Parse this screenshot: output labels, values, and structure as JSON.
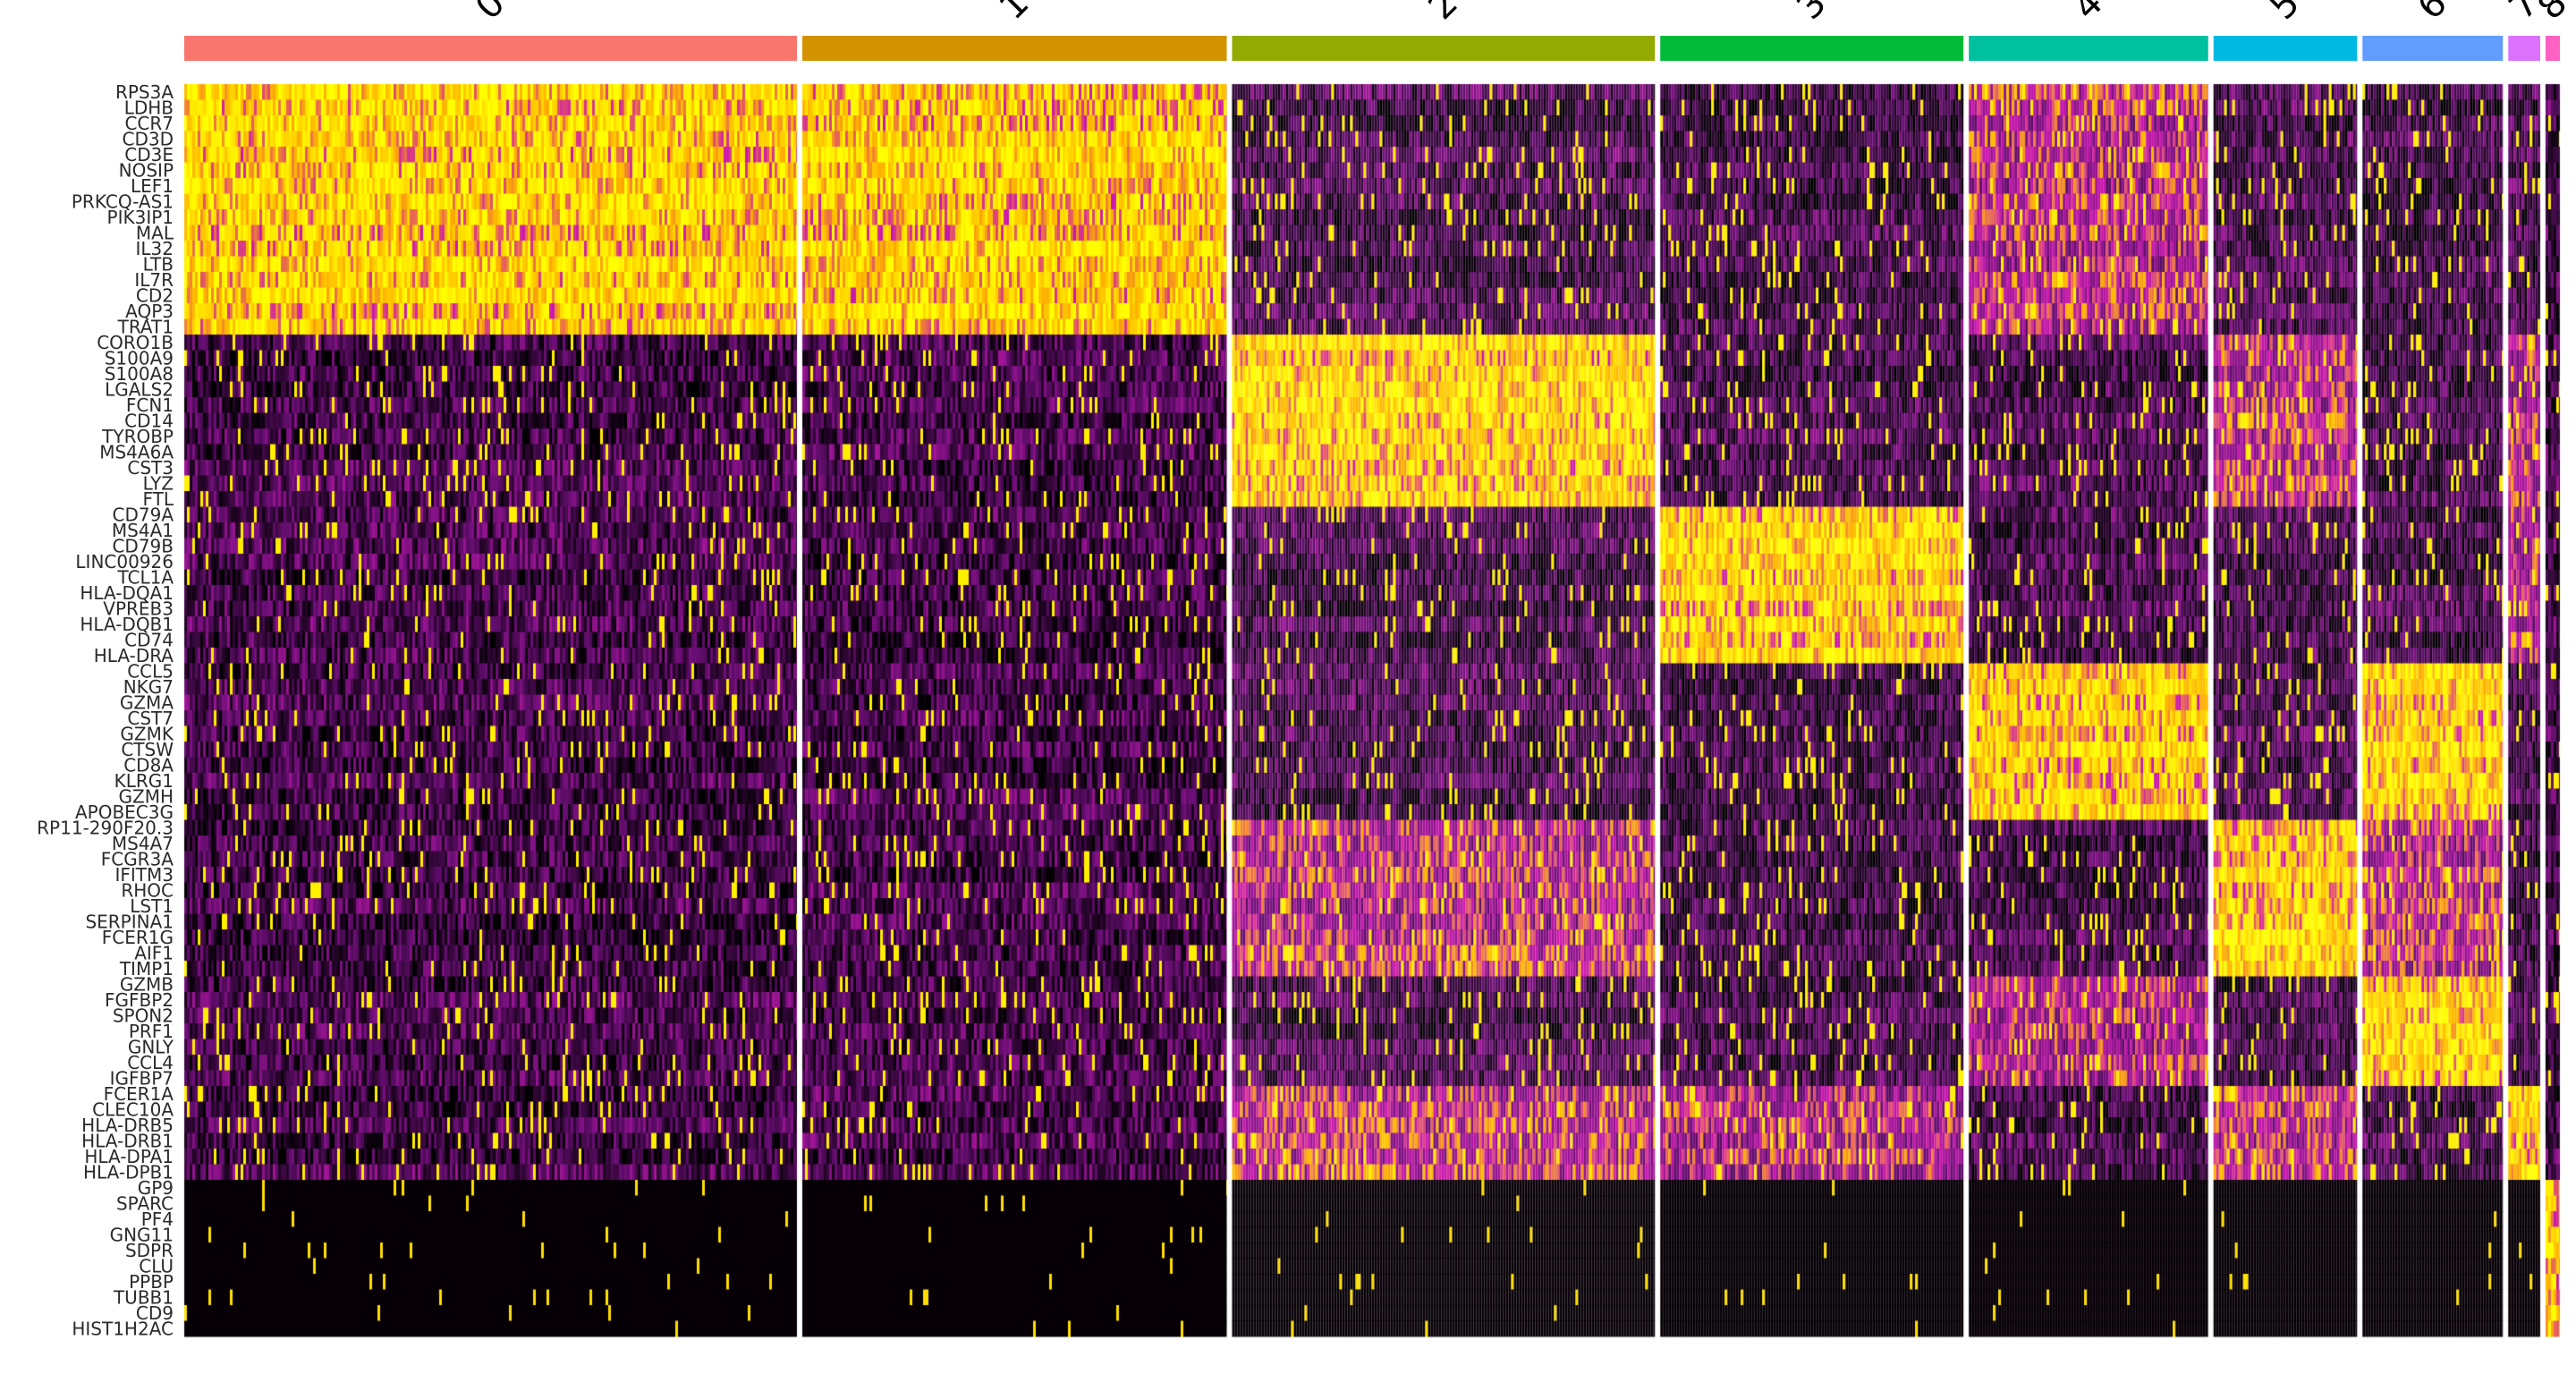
{
  "chart_data": {
    "type": "heatmap",
    "title": "",
    "xlabel": "",
    "ylabel": "",
    "color_scale": [
      "#000000",
      "#6a0f75",
      "#ff00ff",
      "#ffff00"
    ],
    "groups": [
      {
        "label": "0",
        "color": "#F8766D",
        "cells": 384
      },
      {
        "label": "1",
        "color": "#D39200",
        "cells": 266
      },
      {
        "label": "2",
        "color": "#93AA00",
        "cells": 265
      },
      {
        "label": "3",
        "color": "#00BA38",
        "cells": 190
      },
      {
        "label": "4",
        "color": "#00C19F",
        "cells": 150
      },
      {
        "label": "5",
        "color": "#00B9E3",
        "cells": 90
      },
      {
        "label": "6",
        "color": "#619CFF",
        "cells": 88
      },
      {
        "label": "7",
        "color": "#DB72FB",
        "cells": 20
      },
      {
        "label": "8",
        "color": "#FF61C3",
        "cells": 9
      }
    ],
    "genes": [
      "RPS3A",
      "LDHB",
      "CCR7",
      "CD3D",
      "CD3E",
      "NOSIP",
      "LEF1",
      "PRKCQ-AS1",
      "PIK3IP1",
      "MAL",
      "IL32",
      "LTB",
      "IL7R",
      "CD2",
      "AQP3",
      "TRAT1",
      "CORO1B",
      "S100A9",
      "S100A8",
      "LGALS2",
      "FCN1",
      "CD14",
      "TYROBP",
      "MS4A6A",
      "CST3",
      "LYZ",
      "FTL",
      "CD79A",
      "MS4A1",
      "CD79B",
      "LINC00926",
      "TCL1A",
      "HLA-DQA1",
      "VPREB3",
      "HLA-DQB1",
      "CD74",
      "HLA-DRA",
      "CCL5",
      "NKG7",
      "GZMA",
      "CST7",
      "GZMK",
      "CTSW",
      "CD8A",
      "KLRG1",
      "GZMH",
      "APOBEC3G",
      "RP11-290F20.3",
      "MS4A7",
      "FCGR3A",
      "IFITM3",
      "RHOC",
      "LST1",
      "SERPINA1",
      "FCER1G",
      "AIF1",
      "TIMP1",
      "GZMB",
      "FGFBP2",
      "SPON2",
      "PRF1",
      "GNLY",
      "CCL4",
      "IGFBP7",
      "FCER1A",
      "CLEC10A",
      "HLA-DRB5",
      "HLA-DRB1",
      "HLA-DPA1",
      "HLA-DPB1",
      "GP9",
      "SPARC",
      "PF4",
      "GNG11",
      "SDPR",
      "CLU",
      "PPBP",
      "TUBB1",
      "CD9",
      "HIST1H2AC"
    ],
    "gene_markers": [
      {
        "from": 0,
        "to": 15,
        "high_in": [
          "0",
          "1"
        ],
        "moderate_in": [
          "4"
        ]
      },
      {
        "from": 16,
        "to": 26,
        "high_in": [
          "2"
        ],
        "moderate_in": [
          "5",
          "7"
        ]
      },
      {
        "from": 27,
        "to": 36,
        "high_in": [
          "3"
        ],
        "moderate_in": [
          "7"
        ]
      },
      {
        "from": 37,
        "to": 46,
        "high_in": [
          "4",
          "6"
        ],
        "moderate_in": []
      },
      {
        "from": 47,
        "to": 56,
        "high_in": [
          "5"
        ],
        "moderate_in": [
          "2",
          "6"
        ]
      },
      {
        "from": 57,
        "to": 63,
        "high_in": [
          "6"
        ],
        "moderate_in": [
          "4"
        ]
      },
      {
        "from": 64,
        "to": 69,
        "high_in": [
          "7"
        ],
        "moderate_in": [
          "2",
          "3",
          "5"
        ]
      },
      {
        "from": 70,
        "to": 79,
        "high_in": [
          "8"
        ],
        "moderate_in": []
      }
    ],
    "legend": "none",
    "grid": false
  }
}
